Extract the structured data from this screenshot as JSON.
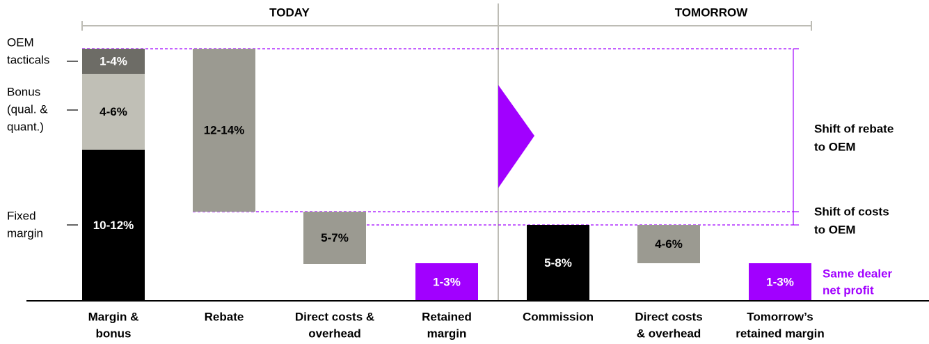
{
  "header": {
    "today": "TODAY",
    "tomorrow": "TOMORROW"
  },
  "left_labels": [
    [
      "OEM",
      "tacticals"
    ],
    [
      "Bonus",
      "(qual. &",
      "quant.)"
    ],
    [
      "Fixed",
      "margin"
    ]
  ],
  "columns": [
    {
      "label": [
        "Margin &",
        "bonus"
      ],
      "segments": [
        "10-12%",
        "4-6%",
        "1-4%"
      ]
    },
    {
      "label": [
        "Rebate"
      ],
      "segments": [
        "12-14%"
      ]
    },
    {
      "label": [
        "Direct costs &",
        "overhead"
      ],
      "segments": [
        "5-7%"
      ]
    },
    {
      "label": [
        "Retained",
        "margin"
      ],
      "segments": [
        "1-3%"
      ]
    },
    {
      "label": [
        "Commission"
      ],
      "segments": [
        "5-8%"
      ]
    },
    {
      "label": [
        "Direct costs",
        "& overhead"
      ],
      "segments": [
        "4-6%"
      ]
    },
    {
      "label": [
        "Tomorrow’s",
        "retained margin"
      ],
      "segments": [
        "1-3%"
      ]
    }
  ],
  "annotations": [
    [
      "Shift of rebate",
      "to OEM"
    ],
    [
      "Shift of costs",
      "to OEM"
    ],
    [
      "Same dealer",
      "net profit"
    ]
  ]
}
